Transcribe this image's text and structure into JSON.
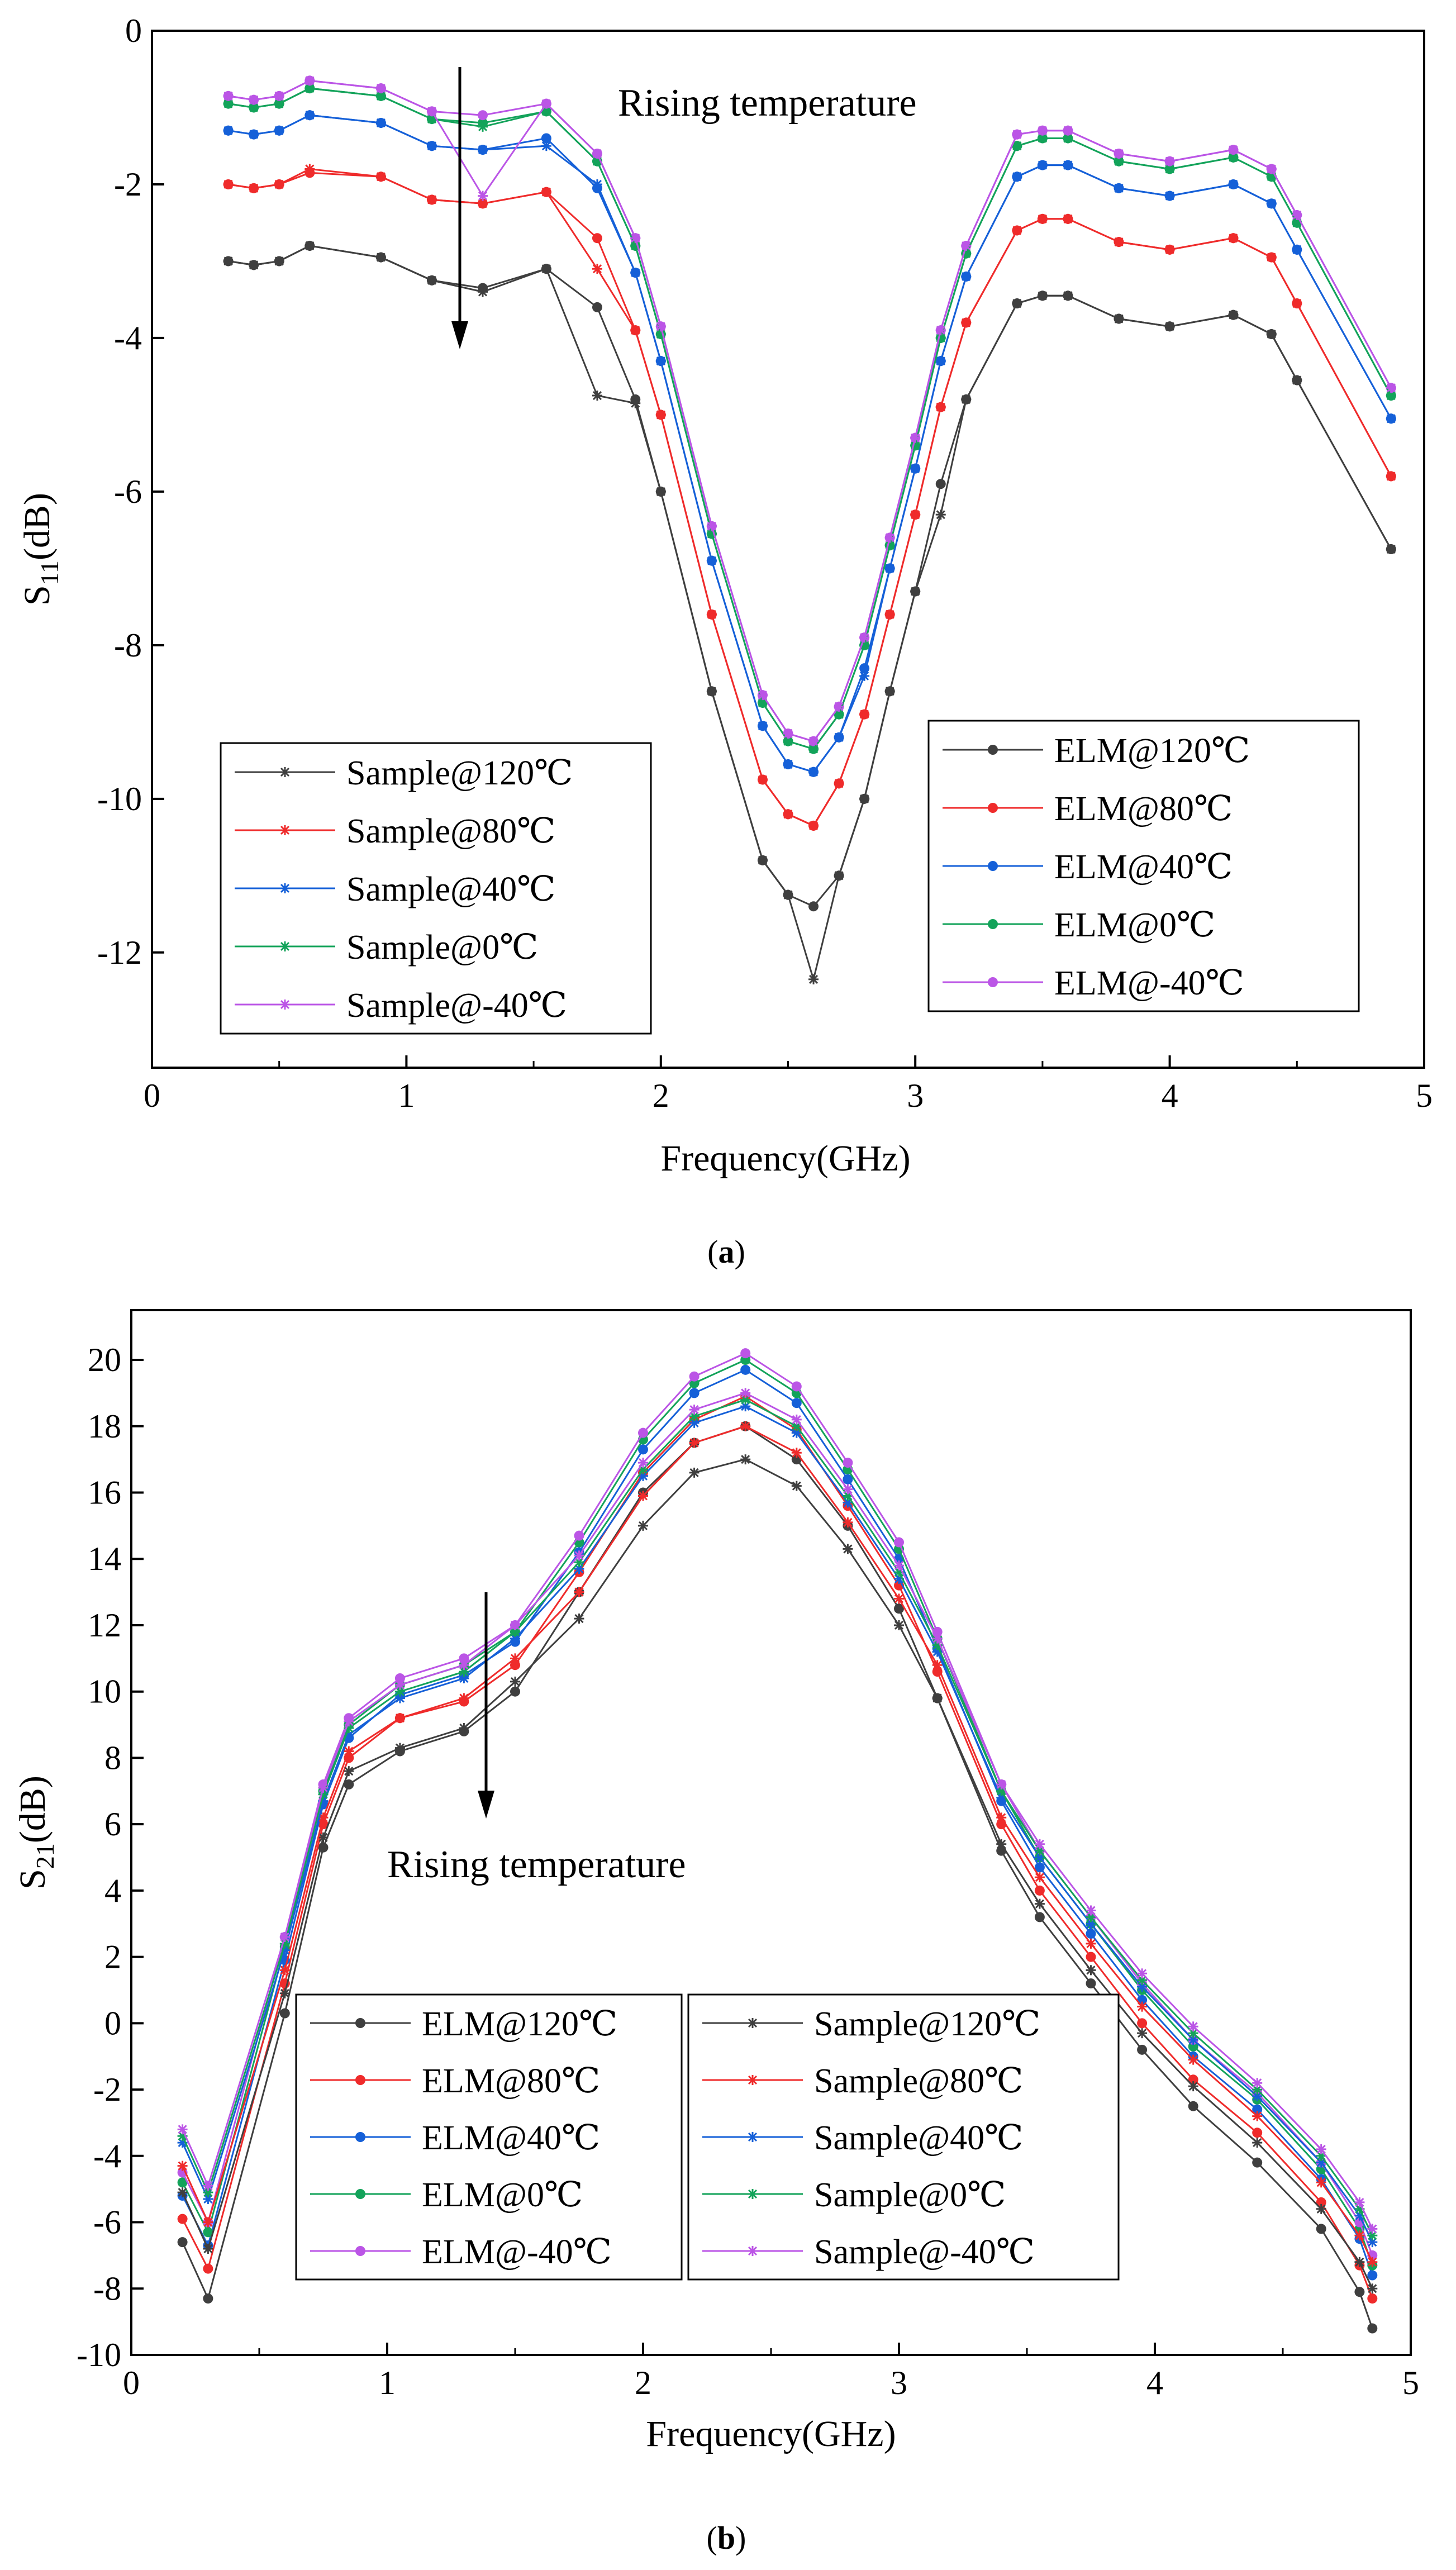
{
  "colors": {
    "120": "#3f3f3f",
    "80": "#ef2b2b",
    "40": "#1560d8",
    "0": "#13a35a",
    "-40": "#bb55e6"
  },
  "chart_data": [
    {
      "type": "line",
      "caption_label": "a",
      "xlabel": "Frequency(GHz)",
      "ylabel": "S11(dB)",
      "ylabel_main": "S",
      "ylabel_sub": "11",
      "ylabel_suffix": "(dB)",
      "xlim": [
        0,
        5
      ],
      "ylim": [
        -13.5,
        0
      ],
      "xticks": [
        0,
        1,
        2,
        3,
        4,
        5
      ],
      "yticks": [
        0,
        -2,
        -4,
        -6,
        -8,
        -10,
        -12
      ],
      "annotation": "Rising temperature",
      "legend_left": [
        "Sample@120℃",
        "Sample@80℃",
        "Sample@40℃",
        "Sample@0℃",
        "Sample@-40℃"
      ],
      "legend_right": [
        "ELM@120℃",
        "ELM@80℃",
        "ELM@40℃",
        "ELM@0℃",
        "ELM@-40℃"
      ],
      "x": [
        0.3,
        0.4,
        0.5,
        0.62,
        0.9,
        1.1,
        1.3,
        1.55,
        1.75,
        1.9,
        2.0,
        2.2,
        2.4,
        2.5,
        2.6,
        2.7,
        2.8,
        2.9,
        3.0,
        3.1,
        3.2,
        3.4,
        3.5,
        3.6,
        3.8,
        4.0,
        4.25,
        4.4,
        4.5,
        4.87
      ],
      "series": [
        {
          "name": "ELM@120℃",
          "kind": "elm",
          "temp": "120",
          "values": [
            -3.0,
            -3.05,
            -3.0,
            -2.8,
            -2.95,
            -3.25,
            -3.35,
            -3.1,
            -3.6,
            -4.8,
            -6.0,
            -8.6,
            -10.8,
            -11.25,
            -11.4,
            -11.0,
            -10.0,
            -8.6,
            -7.3,
            -5.9,
            -4.8,
            -3.55,
            -3.45,
            -3.45,
            -3.75,
            -3.85,
            -3.7,
            -3.95,
            -4.55,
            -6.75
          ]
        },
        {
          "name": "ELM@80℃",
          "kind": "elm",
          "temp": "80",
          "values": [
            -2.0,
            -2.05,
            -2.0,
            -1.85,
            -1.9,
            -2.2,
            -2.25,
            -2.1,
            -2.7,
            -3.9,
            -5.0,
            -7.6,
            -9.75,
            -10.2,
            -10.35,
            -9.8,
            -8.9,
            -7.6,
            -6.3,
            -4.9,
            -3.8,
            -2.6,
            -2.45,
            -2.45,
            -2.75,
            -2.85,
            -2.7,
            -2.95,
            -3.55,
            -5.8
          ]
        },
        {
          "name": "ELM@40℃",
          "kind": "elm",
          "temp": "40",
          "values": [
            -1.3,
            -1.35,
            -1.3,
            -1.1,
            -1.2,
            -1.5,
            -1.55,
            -1.4,
            -2.05,
            -3.15,
            -4.3,
            -6.9,
            -9.05,
            -9.55,
            -9.65,
            -9.2,
            -8.3,
            -7.0,
            -5.7,
            -4.3,
            -3.2,
            -1.9,
            -1.75,
            -1.75,
            -2.05,
            -2.15,
            -2.0,
            -2.25,
            -2.85,
            -5.05
          ]
        },
        {
          "name": "ELM@0℃",
          "kind": "elm",
          "temp": "0",
          "values": [
            -0.95,
            -1.0,
            -0.95,
            -0.75,
            -0.85,
            -1.15,
            -1.2,
            -1.05,
            -1.7,
            -2.8,
            -3.95,
            -6.55,
            -8.75,
            -9.25,
            -9.35,
            -8.9,
            -8.0,
            -6.7,
            -5.4,
            -4.0,
            -2.9,
            -1.5,
            -1.4,
            -1.4,
            -1.7,
            -1.8,
            -1.65,
            -1.9,
            -2.5,
            -4.75
          ]
        },
        {
          "name": "ELM@-40℃",
          "kind": "elm",
          "temp": "-40",
          "values": [
            -0.85,
            -0.9,
            -0.85,
            -0.65,
            -0.75,
            -1.05,
            -1.1,
            -0.95,
            -1.6,
            -2.7,
            -3.85,
            -6.45,
            -8.65,
            -9.15,
            -9.25,
            -8.8,
            -7.9,
            -6.6,
            -5.3,
            -3.9,
            -2.8,
            -1.35,
            -1.3,
            -1.3,
            -1.6,
            -1.7,
            -1.55,
            -1.8,
            -2.4,
            -4.65
          ]
        },
        {
          "name": "Sample@120℃",
          "kind": "sample",
          "temp": "120",
          "values": [
            -3.0,
            -3.05,
            -3.0,
            -2.8,
            -2.95,
            -3.25,
            -3.4,
            -3.1,
            -4.75,
            -4.85,
            -6.0,
            -8.6,
            -10.8,
            -11.25,
            -12.35,
            -11.0,
            -10.0,
            -8.6,
            -7.3,
            -6.3,
            -4.8,
            -3.55,
            -3.45,
            -3.45,
            -3.75,
            -3.85,
            -3.7,
            -3.95,
            -4.55,
            -6.75
          ]
        },
        {
          "name": "Sample@80℃",
          "kind": "sample",
          "temp": "80",
          "values": [
            -2.0,
            -2.05,
            -2.0,
            -1.8,
            -1.9,
            -2.2,
            -2.25,
            -2.1,
            -3.1,
            -3.9,
            -5.0,
            -7.6,
            -9.75,
            -10.2,
            -10.35,
            -9.8,
            -8.9,
            -7.6,
            -6.3,
            -4.9,
            -3.8,
            -2.6,
            -2.45,
            -2.45,
            -2.75,
            -2.85,
            -2.7,
            -2.95,
            -3.55,
            -5.8
          ]
        },
        {
          "name": "Sample@40℃",
          "kind": "sample",
          "temp": "40",
          "values": [
            -1.3,
            -1.35,
            -1.3,
            -1.1,
            -1.2,
            -1.5,
            -1.55,
            -1.5,
            -2.0,
            -3.15,
            -4.3,
            -6.9,
            -9.05,
            -9.55,
            -9.65,
            -9.2,
            -8.4,
            -7.0,
            -5.7,
            -4.3,
            -3.2,
            -1.9,
            -1.75,
            -1.75,
            -2.05,
            -2.15,
            -2.0,
            -2.25,
            -2.85,
            -5.05
          ]
        },
        {
          "name": "Sample@0℃",
          "kind": "sample",
          "temp": "0",
          "values": [
            -0.95,
            -1.0,
            -0.95,
            -0.75,
            -0.85,
            -1.15,
            -1.25,
            -1.05,
            -1.7,
            -2.8,
            -3.95,
            -6.55,
            -8.75,
            -9.25,
            -9.35,
            -8.9,
            -8.0,
            -6.7,
            -5.4,
            -4.0,
            -2.9,
            -1.5,
            -1.4,
            -1.4,
            -1.7,
            -1.8,
            -1.65,
            -1.9,
            -2.5,
            -4.75
          ]
        },
        {
          "name": "Sample@-40℃",
          "kind": "sample",
          "temp": "-40",
          "values": [
            -0.85,
            -0.9,
            -0.85,
            -0.65,
            -0.75,
            -1.05,
            -2.15,
            -0.95,
            -1.6,
            -2.7,
            -3.85,
            -6.45,
            -8.65,
            -9.15,
            -9.25,
            -8.8,
            -7.9,
            -6.6,
            -5.3,
            -3.9,
            -2.8,
            -1.35,
            -1.3,
            -1.3,
            -1.6,
            -1.7,
            -1.55,
            -1.8,
            -2.4,
            -4.65
          ]
        }
      ]
    },
    {
      "type": "line",
      "caption_label": "b",
      "xlabel": "Frequency(GHz)",
      "ylabel": "S21(dB)",
      "ylabel_main": "S",
      "ylabel_sub": "21",
      "ylabel_suffix": "(dB)",
      "xlim": [
        0,
        5
      ],
      "ylim": [
        -10,
        21.5
      ],
      "xticks": [
        0,
        1,
        2,
        3,
        4,
        5
      ],
      "yticks": [
        20,
        18,
        16,
        14,
        12,
        10,
        8,
        6,
        4,
        2,
        0,
        -2,
        -4,
        -6,
        -8,
        -10
      ],
      "annotation": "Rising temperature",
      "legend_left": [
        "ELM@120℃",
        "ELM@80℃",
        "ELM@40℃",
        "ELM@0℃",
        "ELM@-40℃"
      ],
      "legend_right": [
        "Sample@120℃",
        "Sample@80℃",
        "Sample@40℃",
        "Sample@0℃",
        "Sample@-40℃"
      ],
      "x": [
        0.2,
        0.3,
        0.6,
        0.75,
        0.85,
        1.05,
        1.3,
        1.5,
        1.75,
        2.0,
        2.2,
        2.4,
        2.6,
        2.8,
        3.0,
        3.15,
        3.4,
        3.55,
        3.75,
        3.95,
        4.15,
        4.4,
        4.65,
        4.8,
        4.85
      ],
      "series": [
        {
          "name": "ELM@120℃",
          "kind": "elm",
          "temp": "120",
          "values": [
            -6.6,
            -8.3,
            0.3,
            5.3,
            7.2,
            8.2,
            8.8,
            10.0,
            13.0,
            16.0,
            17.5,
            18.0,
            17.0,
            15.0,
            12.5,
            9.8,
            5.2,
            3.2,
            1.2,
            -0.8,
            -2.5,
            -4.2,
            -6.2,
            -8.1,
            -9.2
          ]
        },
        {
          "name": "ELM@80℃",
          "kind": "elm",
          "temp": "80",
          "values": [
            -5.9,
            -7.4,
            1.2,
            6.0,
            8.0,
            9.2,
            9.7,
            10.8,
            13.6,
            16.6,
            18.2,
            18.9,
            17.9,
            15.6,
            13.2,
            10.6,
            6.0,
            4.0,
            2.0,
            0.0,
            -1.7,
            -3.3,
            -5.4,
            -7.3,
            -8.3
          ]
        },
        {
          "name": "ELM@40℃",
          "kind": "elm",
          "temp": "40",
          "values": [
            -5.2,
            -6.7,
            1.9,
            6.6,
            8.6,
            9.9,
            10.5,
            11.5,
            14.2,
            17.3,
            19.0,
            19.7,
            18.7,
            16.4,
            14.0,
            11.3,
            6.7,
            4.7,
            2.7,
            0.7,
            -1.0,
            -2.6,
            -4.7,
            -6.5,
            -7.6
          ]
        },
        {
          "name": "ELM@0℃",
          "kind": "elm",
          "temp": "0",
          "values": [
            -4.8,
            -6.3,
            2.3,
            7.0,
            9.0,
            10.2,
            10.8,
            11.8,
            14.5,
            17.6,
            19.3,
            20.0,
            19.0,
            16.7,
            14.3,
            11.6,
            7.0,
            5.0,
            3.0,
            1.0,
            -0.7,
            -2.3,
            -4.4,
            -6.2,
            -7.3
          ]
        },
        {
          "name": "ELM@-40℃",
          "kind": "elm",
          "temp": "-40",
          "values": [
            -4.5,
            -6.0,
            2.6,
            7.2,
            9.2,
            10.4,
            11.0,
            12.0,
            14.7,
            17.8,
            19.5,
            20.2,
            19.2,
            16.9,
            14.5,
            11.8,
            7.2,
            5.2,
            3.2,
            1.2,
            -0.5,
            -2.1,
            -4.2,
            -6.0,
            -7.0
          ]
        },
        {
          "name": "Sample@120℃",
          "kind": "sample",
          "temp": "120",
          "values": [
            -5.1,
            -6.8,
            0.9,
            5.6,
            7.6,
            8.3,
            8.9,
            10.3,
            12.2,
            15.0,
            16.6,
            17.0,
            16.2,
            14.3,
            12.0,
            9.8,
            5.4,
            3.6,
            1.6,
            -0.3,
            -1.9,
            -3.6,
            -5.6,
            -7.2,
            -8.0
          ]
        },
        {
          "name": "Sample@80℃",
          "kind": "sample",
          "temp": "80",
          "values": [
            -4.3,
            -6.0,
            1.6,
            6.2,
            8.2,
            9.2,
            9.8,
            11.0,
            13.0,
            15.9,
            17.5,
            18.0,
            17.2,
            15.1,
            12.8,
            10.8,
            6.2,
            4.4,
            2.4,
            0.5,
            -1.1,
            -2.8,
            -4.8,
            -6.4,
            -7.2
          ]
        },
        {
          "name": "Sample@40℃",
          "kind": "sample",
          "temp": "40",
          "values": [
            -3.6,
            -5.3,
            2.2,
            6.7,
            8.7,
            9.8,
            10.4,
            11.6,
            13.7,
            16.5,
            18.1,
            18.6,
            17.8,
            15.7,
            13.4,
            11.2,
            6.8,
            5.0,
            3.0,
            1.1,
            -0.5,
            -2.2,
            -4.2,
            -5.8,
            -6.6
          ]
        },
        {
          "name": "Sample@0℃",
          "kind": "sample",
          "temp": "0",
          "values": [
            -3.4,
            -5.1,
            2.4,
            6.9,
            8.9,
            10.0,
            10.6,
            11.8,
            13.9,
            16.7,
            18.3,
            18.8,
            18.0,
            15.9,
            13.6,
            11.4,
            7.0,
            5.2,
            3.2,
            1.3,
            -0.3,
            -2.0,
            -4.0,
            -5.6,
            -6.4
          ]
        },
        {
          "name": "Sample@-40℃",
          "kind": "sample",
          "temp": "-40",
          "values": [
            -3.2,
            -4.9,
            2.6,
            7.1,
            9.1,
            10.2,
            10.8,
            12.0,
            14.1,
            16.9,
            18.5,
            19.0,
            18.2,
            16.1,
            13.8,
            11.6,
            7.2,
            5.4,
            3.4,
            1.5,
            -0.1,
            -1.8,
            -3.8,
            -5.4,
            -6.2
          ]
        }
      ]
    }
  ]
}
